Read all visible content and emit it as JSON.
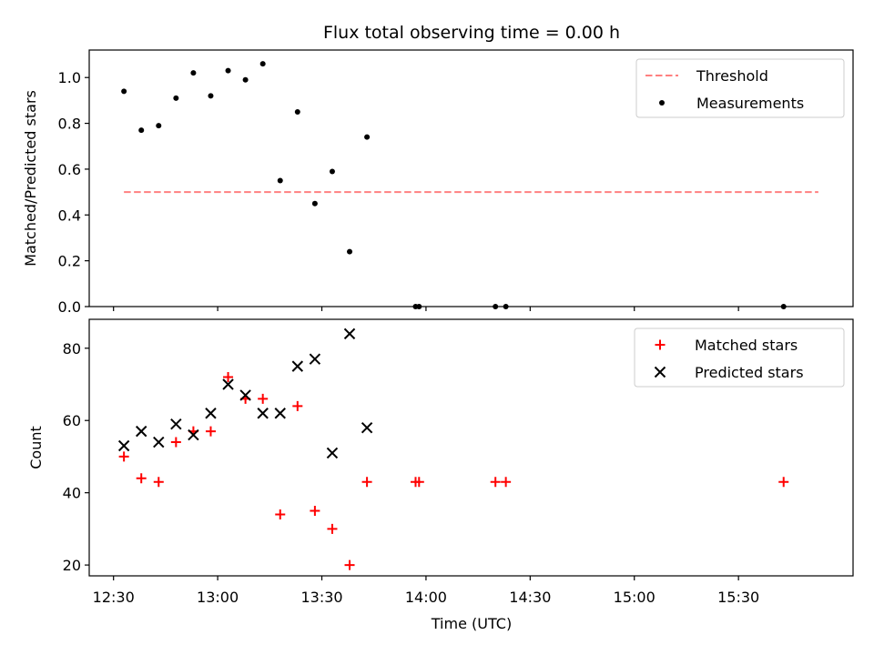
{
  "chart_data": [
    {
      "type": "scatter",
      "title": "Flux total observing time = 0.00 h",
      "xlabel": "",
      "ylabel": "Matched/Predicted stars",
      "ylim": [
        0,
        1.12
      ],
      "yticks": [
        "0.0",
        "0.2",
        "0.4",
        "0.6",
        "0.8",
        "1.0"
      ],
      "xticks": [
        "12:30",
        "13:00",
        "13:30",
        "14:00",
        "14:30",
        "15:00",
        "15:30"
      ],
      "xlim": [
        "12:23",
        "16:03"
      ],
      "legend": {
        "placement": "top-right",
        "entries": [
          "Threshold",
          "Measurements"
        ]
      },
      "threshold": {
        "name": "Threshold",
        "value": 0.5,
        "x_start": "12:33",
        "x_end": "15:53",
        "color": "#ff8080",
        "style": "dashed"
      },
      "series": [
        {
          "name": "Measurements",
          "color": "#000000",
          "marker": "dot",
          "points": [
            [
              "12:33",
              0.94
            ],
            [
              "12:38",
              0.77
            ],
            [
              "12:43",
              0.79
            ],
            [
              "12:48",
              0.91
            ],
            [
              "12:53",
              1.02
            ],
            [
              "12:58",
              0.92
            ],
            [
              "13:03",
              1.03
            ],
            [
              "13:08",
              0.99
            ],
            [
              "13:13",
              1.06
            ],
            [
              "13:18",
              0.55
            ],
            [
              "13:23",
              0.85
            ],
            [
              "13:28",
              0.45
            ],
            [
              "13:33",
              0.59
            ],
            [
              "13:38",
              0.24
            ],
            [
              "13:43",
              0.74
            ],
            [
              "13:57",
              0.0
            ],
            [
              "13:58",
              0.0
            ],
            [
              "14:20",
              0.0
            ],
            [
              "14:23",
              0.0
            ],
            [
              "15:43",
              0.0
            ]
          ]
        }
      ]
    },
    {
      "type": "scatter",
      "title": "",
      "xlabel": "Time (UTC)",
      "ylabel": "Count",
      "ylim": [
        17,
        88
      ],
      "yticks": [
        "20",
        "40",
        "60",
        "80"
      ],
      "xticks": [
        "12:30",
        "13:00",
        "13:30",
        "14:00",
        "14:30",
        "15:00",
        "15:30"
      ],
      "xlim": [
        "12:23",
        "16:03"
      ],
      "legend": {
        "placement": "top-right",
        "entries": [
          "Matched stars",
          "Predicted stars"
        ]
      },
      "series": [
        {
          "name": "Matched stars",
          "color": "#ff0000",
          "marker": "plus",
          "points": [
            [
              "12:33",
              50
            ],
            [
              "12:38",
              44
            ],
            [
              "12:43",
              43
            ],
            [
              "12:48",
              54
            ],
            [
              "12:53",
              57
            ],
            [
              "12:58",
              57
            ],
            [
              "13:03",
              72
            ],
            [
              "13:08",
              66
            ],
            [
              "13:13",
              66
            ],
            [
              "13:18",
              34
            ],
            [
              "13:23",
              64
            ],
            [
              "13:28",
              35
            ],
            [
              "13:33",
              30
            ],
            [
              "13:38",
              20
            ],
            [
              "13:43",
              43
            ],
            [
              "13:57",
              43
            ],
            [
              "13:58",
              43
            ],
            [
              "14:20",
              43
            ],
            [
              "14:23",
              43
            ],
            [
              "15:43",
              43
            ]
          ]
        },
        {
          "name": "Predicted stars",
          "color": "#000000",
          "marker": "x",
          "points": [
            [
              "12:33",
              53
            ],
            [
              "12:38",
              57
            ],
            [
              "12:43",
              54
            ],
            [
              "12:48",
              59
            ],
            [
              "12:53",
              56
            ],
            [
              "12:58",
              62
            ],
            [
              "13:03",
              70
            ],
            [
              "13:08",
              67
            ],
            [
              "13:13",
              62
            ],
            [
              "13:18",
              62
            ],
            [
              "13:23",
              75
            ],
            [
              "13:28",
              77
            ],
            [
              "13:33",
              51
            ],
            [
              "13:38",
              84
            ],
            [
              "13:43",
              58
            ]
          ]
        }
      ]
    }
  ]
}
